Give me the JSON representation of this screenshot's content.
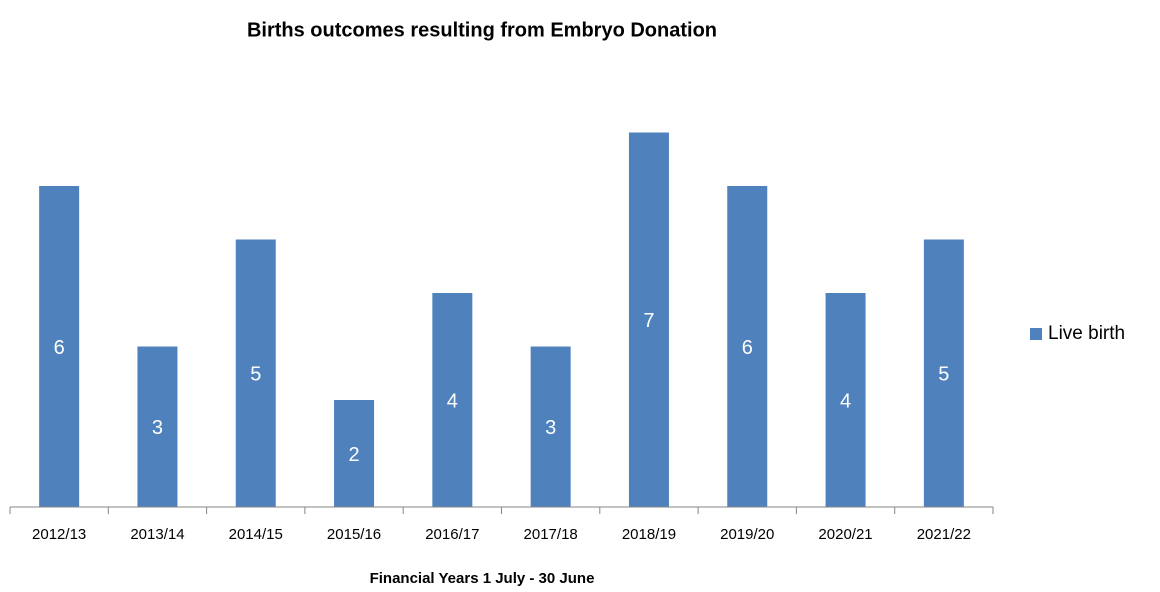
{
  "chart_data": {
    "type": "bar",
    "title": "Births outcomes resulting from Embryo Donation",
    "x_label": "Financial Years 1 July - 30 June",
    "categories": [
      "2012/13",
      "2013/14",
      "2014/15",
      "2015/16",
      "2016/17",
      "2017/18",
      "2018/19",
      "2019/20",
      "2020/21",
      "2021/22"
    ],
    "series": [
      {
        "name": "Live birth",
        "color": "#4f81bd",
        "values": [
          6,
          3,
          5,
          2,
          4,
          3,
          7,
          6,
          4,
          5
        ]
      }
    ],
    "ylim": [
      0,
      8
    ],
    "legend": "right"
  }
}
